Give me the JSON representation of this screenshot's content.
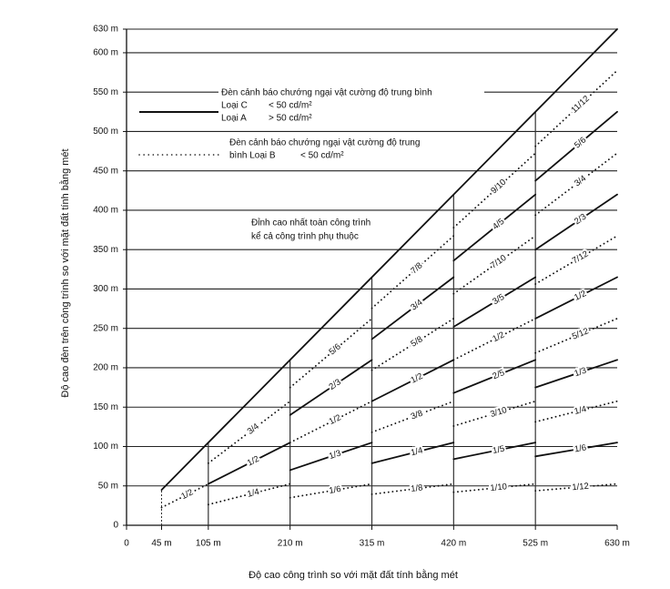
{
  "chart_data": {
    "type": "line",
    "xlabel": "Độ cao công trình so với mặt đất tính bằng mét",
    "ylabel": "Độ cao đèn trên công trình so với mặt đất tính bằng mét",
    "xlim": [
      0,
      630
    ],
    "ylim": [
      0,
      630
    ],
    "xticks": [
      0,
      {
        "value": 45,
        "label": "45 m"
      },
      {
        "value": 105,
        "label": "105 m"
      },
      {
        "value": 210,
        "label": "210 m"
      },
      {
        "value": 315,
        "label": "315 m"
      },
      {
        "value": 420,
        "label": "420 m"
      },
      {
        "value": 525,
        "label": "525 m"
      },
      {
        "value": 630,
        "label": "630 m"
      }
    ],
    "yticks": [
      0,
      {
        "value": 50,
        "label": "50 m"
      },
      {
        "value": 100,
        "label": "100 m"
      },
      {
        "value": 150,
        "label": "150 m"
      },
      {
        "value": 200,
        "label": "200 m"
      },
      {
        "value": 250,
        "label": "250 m"
      },
      {
        "value": 300,
        "label": "300 m"
      },
      {
        "value": 350,
        "label": "350 m"
      },
      {
        "value": 400,
        "label": "400 m"
      },
      {
        "value": 450,
        "label": "450 m"
      },
      {
        "value": 500,
        "label": "500 m"
      },
      {
        "value": 550,
        "label": "550 m"
      },
      {
        "value": 600,
        "label": "600 m"
      },
      {
        "value": 630,
        "label": "630 m"
      }
    ],
    "grid": true,
    "annotations": [
      "Đèn cảnh báo chướng ngại vật cường độ trung bình",
      "Loại C",
      "< 50 cd/m²",
      "Loại A",
      "> 50 cd/m²",
      "Đèn cảnh báo chướng ngại vật cường độ trung",
      "bình Loại B",
      "< 50 cd/m²",
      "Đỉnh cao nhất toàn công trình",
      "kể cả công trình phụ thuộc"
    ],
    "series": [
      {
        "style": "solid",
        "color": "#111111",
        "x": [
          45,
          630
        ],
        "values": [
          45,
          630
        ]
      },
      {
        "label": "1/2",
        "style": "dotted",
        "color": "#111111",
        "x": [
          45,
          105
        ],
        "values": [
          22.5,
          52.5
        ]
      },
      {
        "label": "3/4",
        "style": "dotted",
        "color": "#111111",
        "x": [
          105,
          210
        ],
        "values": [
          78.8,
          157.5
        ]
      },
      {
        "label": "1/2",
        "style": "solid",
        "color": "#111111",
        "x": [
          105,
          210
        ],
        "values": [
          52.5,
          105
        ]
      },
      {
        "label": "1/4",
        "style": "dotted",
        "color": "#111111",
        "x": [
          105,
          210
        ],
        "values": [
          26.3,
          52.5
        ]
      },
      {
        "label": "5/6",
        "style": "dotted",
        "color": "#111111",
        "x": [
          210,
          315
        ],
        "values": [
          175,
          262.5
        ]
      },
      {
        "label": "2/3",
        "style": "solid",
        "color": "#111111",
        "x": [
          210,
          315
        ],
        "values": [
          140,
          210
        ]
      },
      {
        "label": "1/2",
        "style": "dotted",
        "color": "#111111",
        "x": [
          210,
          315
        ],
        "values": [
          105,
          157.5
        ]
      },
      {
        "label": "1/3",
        "style": "solid",
        "color": "#111111",
        "x": [
          210,
          315
        ],
        "values": [
          70,
          105
        ]
      },
      {
        "label": "1/6",
        "style": "dotted",
        "color": "#111111",
        "x": [
          210,
          315
        ],
        "values": [
          35,
          52.5
        ]
      },
      {
        "label": "7/8",
        "style": "dotted",
        "color": "#111111",
        "x": [
          315,
          420
        ],
        "values": [
          275.6,
          367.5
        ]
      },
      {
        "label": "3/4",
        "style": "solid",
        "color": "#111111",
        "x": [
          315,
          420
        ],
        "values": [
          236.3,
          315
        ]
      },
      {
        "label": "5/8",
        "style": "dotted",
        "color": "#111111",
        "x": [
          315,
          420
        ],
        "values": [
          196.9,
          262.5
        ]
      },
      {
        "label": "1/2",
        "style": "solid",
        "color": "#111111",
        "x": [
          315,
          420
        ],
        "values": [
          157.5,
          210
        ]
      },
      {
        "label": "3/8",
        "style": "dotted",
        "color": "#111111",
        "x": [
          315,
          420
        ],
        "values": [
          118.1,
          157.5
        ]
      },
      {
        "label": "1/4",
        "style": "solid",
        "color": "#111111",
        "x": [
          315,
          420
        ],
        "values": [
          78.8,
          105
        ]
      },
      {
        "label": "1/8",
        "style": "dotted",
        "color": "#111111",
        "x": [
          315,
          420
        ],
        "values": [
          39.4,
          52.5
        ]
      },
      {
        "label": "9/10",
        "style": "dotted",
        "color": "#111111",
        "x": [
          420,
          525
        ],
        "values": [
          378,
          472.5
        ]
      },
      {
        "label": "4/5",
        "style": "solid",
        "color": "#111111",
        "x": [
          420,
          525
        ],
        "values": [
          336,
          420
        ]
      },
      {
        "label": "7/10",
        "style": "dotted",
        "color": "#111111",
        "x": [
          420,
          525
        ],
        "values": [
          294,
          367.5
        ]
      },
      {
        "label": "3/5",
        "style": "solid",
        "color": "#111111",
        "x": [
          420,
          525
        ],
        "values": [
          252,
          315
        ]
      },
      {
        "label": "1/2",
        "style": "dotted",
        "color": "#111111",
        "x": [
          420,
          525
        ],
        "values": [
          210,
          262.5
        ]
      },
      {
        "label": "2/5",
        "style": "solid",
        "color": "#111111",
        "x": [
          420,
          525
        ],
        "values": [
          168,
          210
        ]
      },
      {
        "label": "3/10",
        "style": "dotted",
        "color": "#111111",
        "x": [
          420,
          525
        ],
        "values": [
          126,
          157.5
        ]
      },
      {
        "label": "1/5",
        "style": "solid",
        "color": "#111111",
        "x": [
          420,
          525
        ],
        "values": [
          84,
          105
        ]
      },
      {
        "label": "1/10",
        "style": "dotted",
        "color": "#111111",
        "x": [
          420,
          525
        ],
        "values": [
          42,
          52.5
        ]
      },
      {
        "label": "11/12",
        "style": "dotted",
        "color": "#111111",
        "x": [
          525,
          630
        ],
        "values": [
          481.3,
          577.5
        ]
      },
      {
        "label": "5/6",
        "style": "solid",
        "color": "#111111",
        "x": [
          525,
          630
        ],
        "values": [
          437.5,
          525
        ]
      },
      {
        "label": "3/4",
        "style": "dotted",
        "color": "#111111",
        "x": [
          525,
          630
        ],
        "values": [
          393.8,
          472.5
        ]
      },
      {
        "label": "2/3",
        "style": "solid",
        "color": "#111111",
        "x": [
          525,
          630
        ],
        "values": [
          350,
          420
        ]
      },
      {
        "label": "7/12",
        "style": "dotted",
        "color": "#111111",
        "x": [
          525,
          630
        ],
        "values": [
          306.3,
          367.5
        ]
      },
      {
        "label": "1/2",
        "style": "solid",
        "color": "#111111",
        "x": [
          525,
          630
        ],
        "values": [
          262.5,
          315
        ]
      },
      {
        "label": "5/12",
        "style": "dotted",
        "color": "#111111",
        "x": [
          525,
          630
        ],
        "values": [
          218.8,
          262.5
        ]
      },
      {
        "label": "1/3",
        "style": "solid",
        "color": "#111111",
        "x": [
          525,
          630
        ],
        "values": [
          175,
          210
        ]
      },
      {
        "label": "1/4",
        "style": "dotted",
        "color": "#111111",
        "x": [
          525,
          630
        ],
        "values": [
          131.3,
          157.5
        ]
      },
      {
        "label": "1/6",
        "style": "solid",
        "color": "#111111",
        "x": [
          525,
          630
        ],
        "values": [
          87.5,
          105
        ]
      },
      {
        "label": "1/12",
        "style": "dotted",
        "color": "#111111",
        "x": [
          525,
          630
        ],
        "values": [
          43.8,
          52.5
        ]
      }
    ]
  }
}
